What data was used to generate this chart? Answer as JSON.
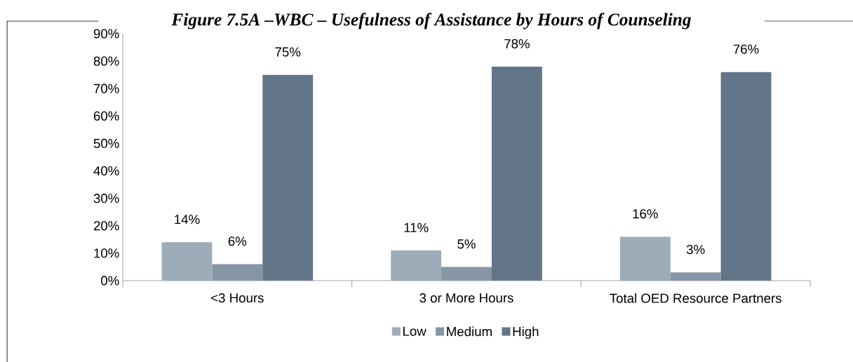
{
  "chart_data": {
    "type": "bar",
    "title": "Figure 7.5A –WBC – Usefulness of Assistance by Hours of Counseling",
    "categories": [
      "<3 Hours",
      "3 or More Hours",
      "Total OED Resource Partners"
    ],
    "series": [
      {
        "name": "Low",
        "color": "#9eabb8",
        "values": [
          14,
          11,
          16
        ],
        "value_labels": [
          "14%",
          "11%",
          "16%"
        ]
      },
      {
        "name": "Medium",
        "color": "#8796a6",
        "values": [
          6,
          5,
          3
        ],
        "value_labels": [
          "6%",
          "5%",
          "3%"
        ]
      },
      {
        "name": "High",
        "color": "#637589",
        "values": [
          75,
          78,
          76
        ],
        "value_labels": [
          "75%",
          "78%",
          "76%"
        ]
      }
    ],
    "ylim": [
      0,
      90
    ],
    "yticks": [
      {
        "value": 0,
        "label": "0%"
      },
      {
        "value": 10,
        "label": "10%"
      },
      {
        "value": 20,
        "label": "20%"
      },
      {
        "value": 30,
        "label": "30%"
      },
      {
        "value": 40,
        "label": "40%"
      },
      {
        "value": 50,
        "label": "50%"
      },
      {
        "value": 60,
        "label": "60%"
      },
      {
        "value": 70,
        "label": "70%"
      },
      {
        "value": 80,
        "label": "80%"
      },
      {
        "value": 90,
        "label": "90%"
      }
    ],
    "grid": false,
    "legend": "bottom"
  }
}
